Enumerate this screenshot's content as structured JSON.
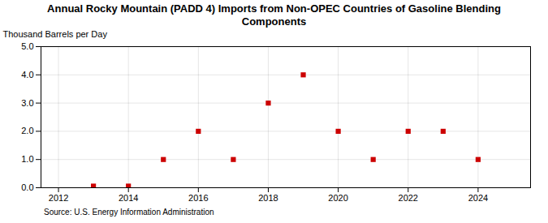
{
  "chart_data": {
    "type": "scatter",
    "title": "Annual Rocky Mountain (PADD 4) Imports from Non-OPEC Countries of Gasoline Blending\nComponents",
    "ylabel": "Thousand Barrels per Day",
    "source": "Source: U.S. Energy Information Administration",
    "x": [
      2013,
      2014,
      2015,
      2016,
      2017,
      2018,
      2019,
      2020,
      2021,
      2022,
      2023,
      2024
    ],
    "values": [
      0.057,
      0.057,
      1.0,
      2.0,
      1.0,
      3.0,
      4.0,
      2.0,
      1.0,
      2.0,
      2.0,
      1.0
    ],
    "color": "#cc0000",
    "marker": "square",
    "xlim": [
      2011.5,
      2025.5
    ],
    "ylim": [
      0.0,
      5.0
    ],
    "xticks": [
      2012,
      2014,
      2016,
      2018,
      2020,
      2022,
      2024
    ],
    "yticks": [
      {
        "value": 0.0,
        "label": "0.0"
      },
      {
        "value": 1.0,
        "label": "1.0"
      },
      {
        "value": 2.0,
        "label": "2.0"
      },
      {
        "value": 3.0,
        "label": "3.0"
      },
      {
        "value": 4.0,
        "label": "4.0"
      },
      {
        "value": 5.0,
        "label": "5.0"
      }
    ],
    "grid": true
  }
}
